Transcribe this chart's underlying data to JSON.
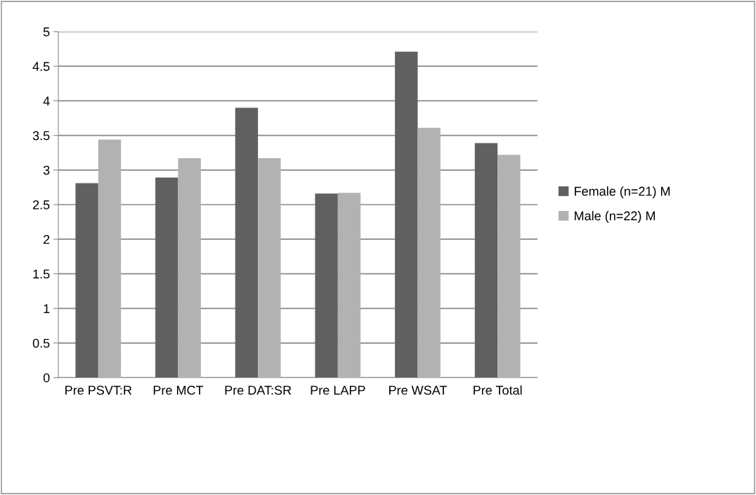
{
  "chart_data": {
    "type": "bar",
    "categories": [
      "Pre PSVT:R",
      "Pre MCT",
      "Pre DAT:SR",
      "Pre LAPP",
      "Pre WSAT",
      "Pre Total"
    ],
    "series": [
      {
        "name": "Female (n=21) M",
        "color": "#606060",
        "values": [
          2.81,
          2.89,
          3.9,
          2.66,
          4.71,
          3.39
        ]
      },
      {
        "name": "Male (n=22) M",
        "color": "#b2b2b2",
        "values": [
          3.44,
          3.17,
          3.17,
          2.67,
          3.61,
          3.22
        ]
      }
    ],
    "ylim": [
      0,
      5
    ],
    "yticks": [
      0,
      0.5,
      1,
      1.5,
      2,
      2.5,
      3,
      3.5,
      4,
      4.5,
      5
    ],
    "grid": "y",
    "legend": "right"
  }
}
